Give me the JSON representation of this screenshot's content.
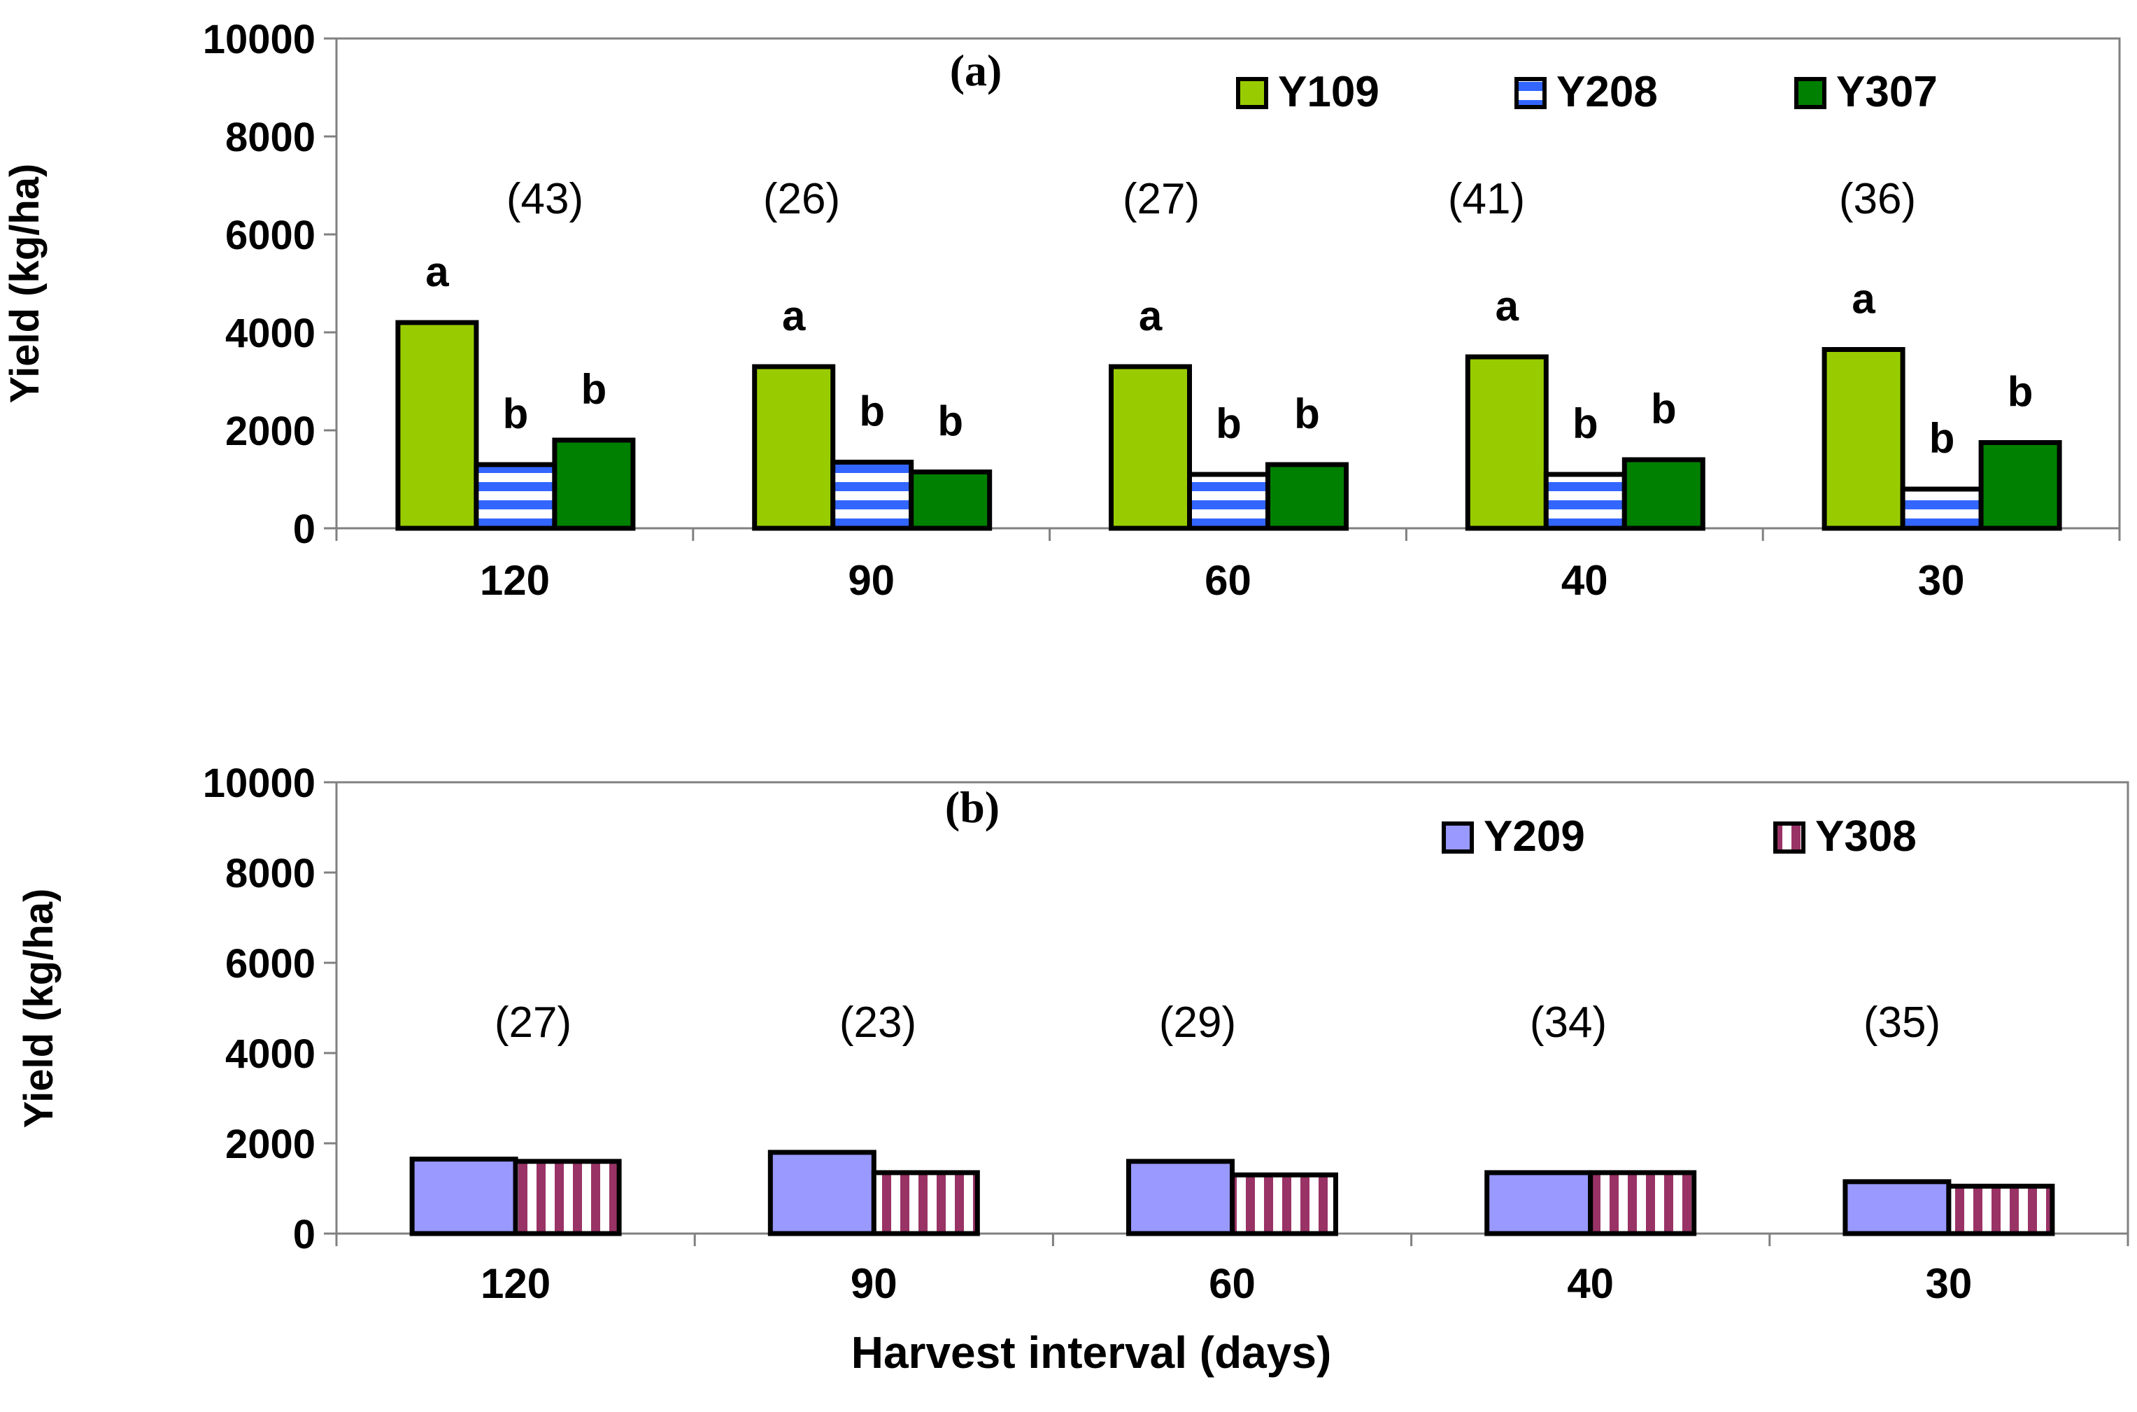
{
  "colors": {
    "Y109": "#99cc00",
    "Y208_fill": "#3366ff",
    "Y208_stripe": "#ffffff",
    "Y307": "#008000",
    "Y209": "#9999ff",
    "Y308_fill": "#993366",
    "Y308_stripe": "#ffffff",
    "axis": "#808080",
    "outline": "#000000"
  },
  "chart_data": [
    {
      "panel": "(a)",
      "type": "bar",
      "ylabel": "Yield (kg/ha)",
      "xlabel": "",
      "ylim": [
        0,
        10000
      ],
      "yticks": [
        "0",
        "2000",
        "4000",
        "6000",
        "8000",
        "10000"
      ],
      "categories": [
        "120",
        "90",
        "60",
        "40",
        "30"
      ],
      "series": [
        {
          "name": "Y109",
          "values": [
            4200,
            3300,
            3300,
            3500,
            3650
          ],
          "letters": [
            "a",
            "a",
            "a",
            "a",
            "a"
          ]
        },
        {
          "name": "Y208",
          "values": [
            1300,
            1350,
            1100,
            1100,
            800
          ],
          "letters": [
            "b",
            "b",
            "b",
            "b",
            "b"
          ]
        },
        {
          "name": "Y307",
          "values": [
            1800,
            1150,
            1300,
            1400,
            1750
          ],
          "letters": [
            "b",
            "b",
            "b",
            "b",
            "b"
          ]
        }
      ],
      "group_annotations": [
        "(43)",
        "(26)",
        "(27)",
        "(41)",
        "(36)"
      ],
      "legend": [
        "Y109",
        "Y208",
        "Y307"
      ]
    },
    {
      "panel": "(b)",
      "type": "bar",
      "ylabel": "Yield (kg/ha)",
      "xlabel": "Harvest interval (days)",
      "ylim": [
        0,
        10000
      ],
      "yticks": [
        "0",
        "2000",
        "4000",
        "6000",
        "8000",
        "10000"
      ],
      "categories": [
        "120",
        "90",
        "60",
        "40",
        "30"
      ],
      "series": [
        {
          "name": "Y209",
          "values": [
            1650,
            1800,
            1600,
            1350,
            1150
          ]
        },
        {
          "name": "Y308",
          "values": [
            1600,
            1350,
            1300,
            1350,
            1050
          ]
        }
      ],
      "group_annotations": [
        "(27)",
        "(23)",
        "(29)",
        "(34)",
        "(35)"
      ],
      "legend": [
        "Y209",
        "Y308"
      ]
    }
  ]
}
